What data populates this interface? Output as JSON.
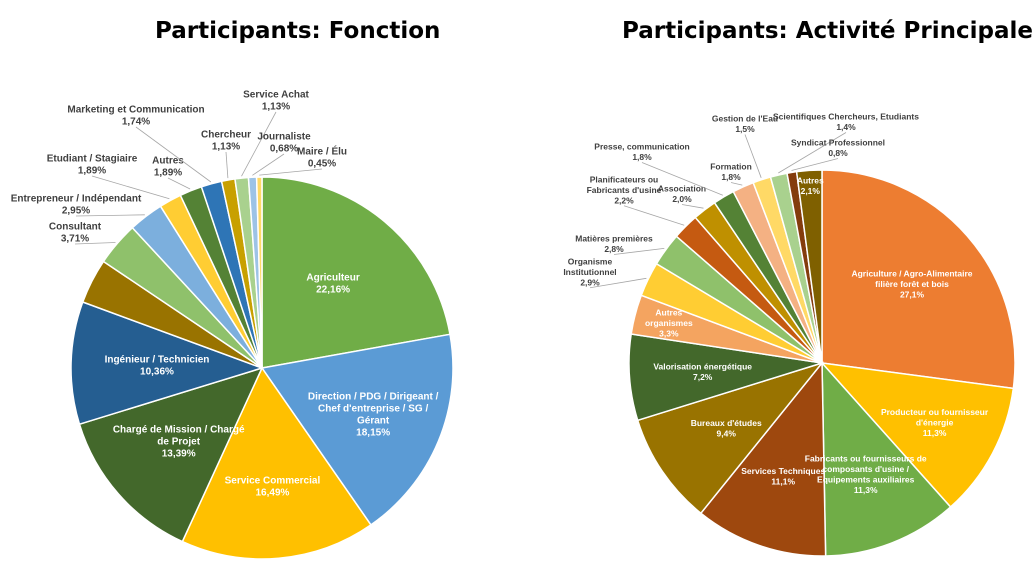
{
  "chart_data": [
    {
      "type": "pie",
      "title": "Participants: Fonction",
      "slices": [
        {
          "name": "Agriculteur",
          "label": "Agriculteur",
          "value_label": "22,16%",
          "value": 22.16,
          "color": "#70AD47"
        },
        {
          "name": "Direction / PDG / Dirigeant / Chef d'entreprise / SG / Gérant",
          "label": "Direction / PDG / Dirigeant /\nChef d'entreprise / SG /\nGérant",
          "value_label": "18,15%",
          "value": 18.15,
          "color": "#5B9BD5"
        },
        {
          "name": "Service Commercial",
          "label": "Service Commercial",
          "value_label": "16,49%",
          "value": 16.49,
          "color": "#FFC000"
        },
        {
          "name": "Chargé de Mission / Chargé de Projet",
          "label": "Chargé de Mission / Chargé\nde Projet",
          "value_label": "13,39%",
          "value": 13.39,
          "color": "#43682B"
        },
        {
          "name": "Ingénieur / Technicien",
          "label": "Ingénieur / Technicien",
          "value_label": "10,36%",
          "value": 10.36,
          "color": "#255E91"
        },
        {
          "name": "",
          "label": "",
          "value_label": "",
          "value": 3.8,
          "color": "#997300"
        },
        {
          "name": "Consultant",
          "label": "Consultant",
          "value_label": "3,71%",
          "value": 3.71,
          "color": "#8FC16B"
        },
        {
          "name": "Entrepreneur / Indépendant",
          "label": "Entrepreneur / Indépendant",
          "value_label": "2,95%",
          "value": 2.95,
          "color": "#7CAFDD"
        },
        {
          "name": "Etudiant / Stagiaire",
          "label": "Etudiant / Stagiaire",
          "value_label": "1,89%",
          "value": 1.89,
          "color": "#FFCD33"
        },
        {
          "name": "Autres",
          "label": "Autres",
          "value_label": "1,89%",
          "value": 1.89,
          "color": "#548235"
        },
        {
          "name": "Marketing et Communication",
          "label": "Marketing et Communication",
          "value_label": "1,74%",
          "value": 1.74,
          "color": "#2E75B6"
        },
        {
          "name": "Chercheur",
          "label": "Chercheur",
          "value_label": "1,13%",
          "value": 1.13,
          "color": "#C8A000"
        },
        {
          "name": "Service Achat",
          "label": "Service Achat",
          "value_label": "1,13%",
          "value": 1.13,
          "color": "#A9D18E"
        },
        {
          "name": "Journaliste",
          "label": "Journaliste",
          "value_label": "0,68%",
          "value": 0.68,
          "color": "#9DC3E6"
        },
        {
          "name": "Maire / Élu",
          "label": "Maire / Élu",
          "value_label": "0,45%",
          "value": 0.45,
          "color": "#FFD966"
        }
      ]
    },
    {
      "type": "pie",
      "title": "Participants: Activité Principale",
      "slices": [
        {
          "name": "Agriculture / Agro-Alimentaire filière forêt et bois",
          "label": "Agriculture / Agro-Alimentaire\nfilière forêt et bois",
          "value_label": "27,1%",
          "value": 27.1,
          "color": "#ED7D31"
        },
        {
          "name": "Producteur ou fournisseur d'énergie",
          "label": "Producteur ou fournisseur\nd'énergie",
          "value_label": "11,3%",
          "value": 11.3,
          "color": "#FFC000"
        },
        {
          "name": "Fabricants ou fournisseurs de composants d'usine / Equipements auxiliaires",
          "label": "Fabricants ou fournisseurs de\ncomposants d'usine /\nEquipements auxiliaires",
          "value_label": "11,3%",
          "value": 11.3,
          "color": "#70AD47"
        },
        {
          "name": "Services Techniques",
          "label": "Services Techniques",
          "value_label": "11,1%",
          "value": 11.1,
          "color": "#9E480E"
        },
        {
          "name": "Bureaux d'études",
          "label": "Bureaux d'études",
          "value_label": "9,4%",
          "value": 9.4,
          "color": "#997300"
        },
        {
          "name": "Valorisation énergétique",
          "label": "Valorisation énergétique",
          "value_label": "7,2%",
          "value": 7.2,
          "color": "#43682B"
        },
        {
          "name": "Autres organismes",
          "label": "Autres\norganismes",
          "value_label": "3,3%",
          "value": 3.3,
          "color": "#F4A460"
        },
        {
          "name": "Organisme Institutionnel",
          "label": "Organisme\nInstitutionnel",
          "value_label": "2,9%",
          "value": 2.9,
          "color": "#FFCD33"
        },
        {
          "name": "Matières premières",
          "label": "Matières premières",
          "value_label": "2,8%",
          "value": 2.8,
          "color": "#8FC16B"
        },
        {
          "name": "Planificateurs ou Fabricants d'usine",
          "label": "Planificateurs ou\nFabricants d'usine",
          "value_label": "2,2%",
          "value": 2.2,
          "color": "#C55A11"
        },
        {
          "name": "Association",
          "label": "Association",
          "value_label": "2,0%",
          "value": 2.0,
          "color": "#BF9000"
        },
        {
          "name": "Presse, communication",
          "label": "Presse, communication",
          "value_label": "1,8%",
          "value": 1.8,
          "color": "#548235"
        },
        {
          "name": "Formation",
          "label": "Formation",
          "value_label": "1,8%",
          "value": 1.8,
          "color": "#F4B183"
        },
        {
          "name": "Gestion de l'Eau",
          "label": "Gestion de l'Eau",
          "value_label": "1,5%",
          "value": 1.5,
          "color": "#FFD966"
        },
        {
          "name": "Scientifiques Chercheurs, Etudiants",
          "label": "Scientifiques Chercheurs, Etudiants",
          "value_label": "1,4%",
          "value": 1.4,
          "color": "#A9D18E"
        },
        {
          "name": "Syndicat Professionnel",
          "label": "Syndicat Professionnel",
          "value_label": "0,8%",
          "value": 0.8,
          "color": "#843C0C"
        },
        {
          "name": "Autres",
          "label": "Autres",
          "value_label": "2,1%",
          "value": 2.1,
          "color": "#7F6000"
        }
      ]
    }
  ]
}
